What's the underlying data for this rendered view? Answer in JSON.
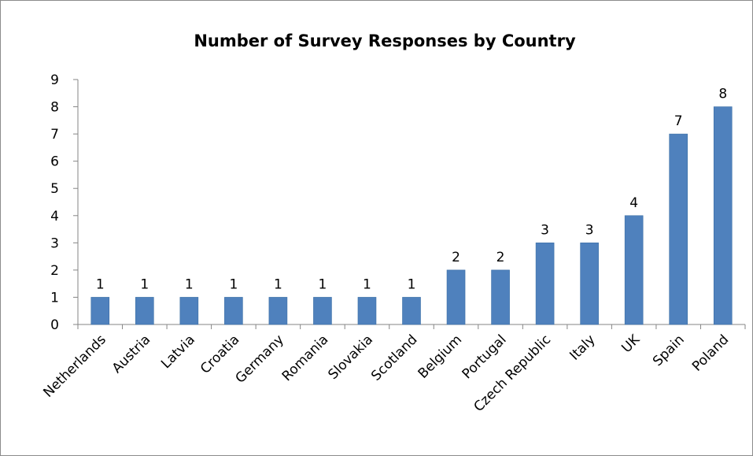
{
  "chart_data": {
    "type": "bar",
    "title": "Number of Survey Responses by Country",
    "xlabel": "",
    "ylabel": "",
    "categories": [
      "Netherlands",
      "Austria",
      "Latvia",
      "Croatia",
      "Germany",
      "Romania",
      "Slovakia",
      "Scotland",
      "Belgium",
      "Portugal",
      "Czech Republic",
      "Italy",
      "UK",
      "Spain",
      "Poland"
    ],
    "values": [
      1,
      1,
      1,
      1,
      1,
      1,
      1,
      1,
      2,
      2,
      3,
      3,
      4,
      7,
      8
    ],
    "ylim": [
      0,
      9
    ],
    "yticks": [
      0,
      1,
      2,
      3,
      4,
      5,
      6,
      7,
      8,
      9
    ],
    "data_labels": true,
    "grid": false,
    "legend": "none",
    "bar_color": "#4f81bd",
    "bar_edge_color": "#3a6ea5"
  }
}
